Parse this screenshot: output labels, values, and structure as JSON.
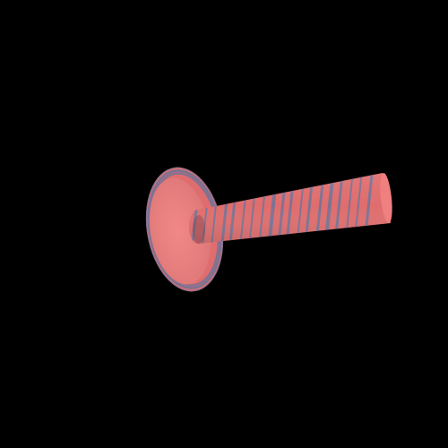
{
  "scene": {
    "background_color": "#000000",
    "object": {
      "name": "striped-cylinder-rod-with-round-base",
      "colors": {
        "base_stripe": "#E06D6D",
        "alt_stripe": "#7E7293",
        "face_base": "#F08080",
        "shadow": "#6E3A45"
      }
    }
  }
}
